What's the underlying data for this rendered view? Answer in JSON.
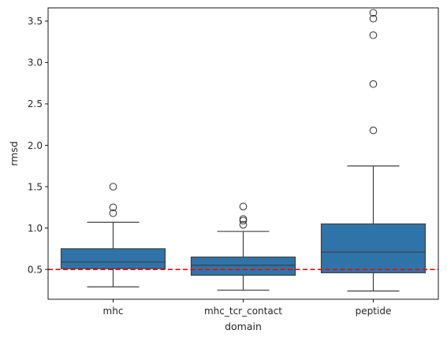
{
  "chart_data": {
    "type": "box",
    "title": "",
    "xlabel": "domain",
    "ylabel": "rmsd",
    "ylim": [
      0.14,
      3.66
    ],
    "y_ticks": [
      0.5,
      1.0,
      1.5,
      2.0,
      2.5,
      3.0,
      3.5
    ],
    "y_tick_labels": [
      "0.5",
      "1.0",
      "1.5",
      "2.0",
      "2.5",
      "3.0",
      "3.5"
    ],
    "grid": false,
    "box_color": "#2f74a8",
    "reference_line": {
      "y": 0.5,
      "color": "#ff0000",
      "style": "dashed"
    },
    "categories": [
      "mhc",
      "mhc_tcr_contact",
      "peptide"
    ],
    "boxes": [
      {
        "category": "mhc",
        "whisker_low": 0.29,
        "q1": 0.51,
        "median": 0.59,
        "q3": 0.75,
        "whisker_high": 1.07,
        "outliers": [
          1.18,
          1.25,
          1.5
        ]
      },
      {
        "category": "mhc_tcr_contact",
        "whisker_low": 0.25,
        "q1": 0.43,
        "median": 0.55,
        "q3": 0.65,
        "whisker_high": 0.96,
        "outliers": [
          1.04,
          1.09,
          1.11,
          1.26
        ]
      },
      {
        "category": "peptide",
        "whisker_low": 0.24,
        "q1": 0.46,
        "median": 0.71,
        "q3": 1.05,
        "whisker_high": 1.75,
        "outliers": [
          2.18,
          2.74,
          3.33,
          3.53,
          3.6
        ]
      }
    ]
  }
}
